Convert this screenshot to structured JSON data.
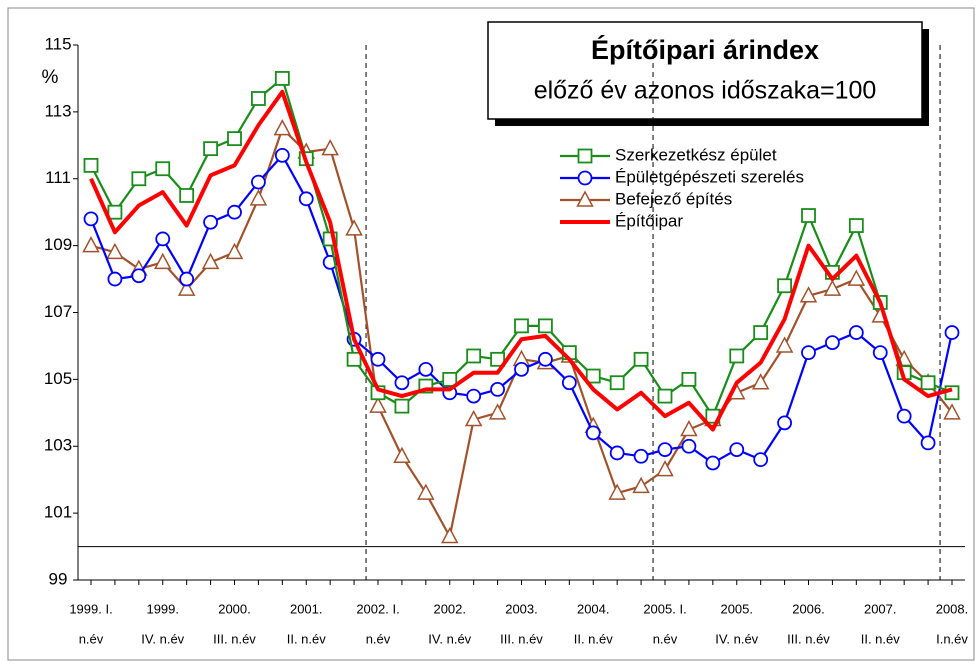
{
  "chart_data": {
    "type": "line",
    "title": "Építőipari árindex",
    "subtitle": "előző év azonos időszaka=100",
    "y_label": "%",
    "categories": [
      [
        "1999. I.",
        "n.év"
      ],
      null,
      null,
      [
        "1999.",
        "IV. n.év"
      ],
      null,
      null,
      [
        "2000.",
        "III. n.év"
      ],
      null,
      null,
      [
        "2001.",
        "II. n.év"
      ],
      null,
      null,
      [
        "2002. I.",
        "n.év"
      ],
      null,
      null,
      [
        "2002.",
        "IV. n.év"
      ],
      null,
      null,
      [
        "2003.",
        "III. n.év"
      ],
      null,
      null,
      [
        "2004.",
        "II. n.év"
      ],
      null,
      null,
      [
        "2005. I.",
        "n.év"
      ],
      null,
      null,
      [
        "2005.",
        "IV. n.év"
      ],
      null,
      null,
      [
        "2006.",
        "III. n.év"
      ],
      null,
      null,
      [
        "2007.",
        "II. n.év"
      ],
      null,
      null,
      [
        "2008.",
        "I.n.év"
      ]
    ],
    "series": [
      {
        "name": "Szerkezetkész épület",
        "color": "#1a8c1a",
        "marker": "square",
        "values": [
          111.4,
          110.0,
          111.0,
          111.3,
          110.5,
          111.9,
          112.2,
          113.4,
          114.0,
          111.6,
          109.2,
          105.6,
          104.6,
          104.2,
          104.8,
          105.0,
          105.7,
          105.6,
          106.6,
          106.6,
          105.8,
          105.1,
          104.9,
          105.6,
          104.5,
          105.0,
          103.9,
          105.7,
          106.4,
          107.8,
          109.9,
          108.2,
          109.6,
          107.3,
          105.2,
          104.9,
          104.6
        ]
      },
      {
        "name": "Épületgépészeti szerelés",
        "color": "#0000ff",
        "marker": "circle",
        "values": [
          109.8,
          108.0,
          108.1,
          109.2,
          108.0,
          109.7,
          110.0,
          110.9,
          111.7,
          110.4,
          108.5,
          106.2,
          105.6,
          104.9,
          105.3,
          104.6,
          104.5,
          104.7,
          105.3,
          105.6,
          104.9,
          103.4,
          102.8,
          102.7,
          102.9,
          103.0,
          102.5,
          102.9,
          102.6,
          103.7,
          105.8,
          106.1,
          106.4,
          105.8,
          103.9,
          103.1,
          106.4
        ]
      },
      {
        "name": "Befejező építés",
        "color": "#a0522d",
        "marker": "triangle",
        "values": [
          109.0,
          108.8,
          108.3,
          108.5,
          107.7,
          108.5,
          108.8,
          110.4,
          112.5,
          111.8,
          111.9,
          109.5,
          104.2,
          102.7,
          101.6,
          100.3,
          103.8,
          104.0,
          105.6,
          105.5,
          105.7,
          103.6,
          101.6,
          101.8,
          102.3,
          103.5,
          103.8,
          104.6,
          104.9,
          106.0,
          107.5,
          107.7,
          108.0,
          106.9,
          105.6,
          104.9,
          104.0
        ]
      },
      {
        "name": "Építőipar",
        "color": "#ff0000",
        "marker": "none",
        "values": [
          111.0,
          109.4,
          110.2,
          110.6,
          109.6,
          111.1,
          111.4,
          112.6,
          113.6,
          111.5,
          109.7,
          106.2,
          104.7,
          104.5,
          104.7,
          104.7,
          105.2,
          105.2,
          106.2,
          106.3,
          105.6,
          104.7,
          104.1,
          104.6,
          103.9,
          104.3,
          103.5,
          104.9,
          105.5,
          106.8,
          109.0,
          108.0,
          108.7,
          107.3,
          105.0,
          104.5,
          104.7
        ]
      }
    ],
    "ylim": [
      99,
      115
    ],
    "yticks": [
      99,
      101,
      103,
      105,
      107,
      109,
      111,
      113,
      115
    ],
    "reference_line": 100
  }
}
